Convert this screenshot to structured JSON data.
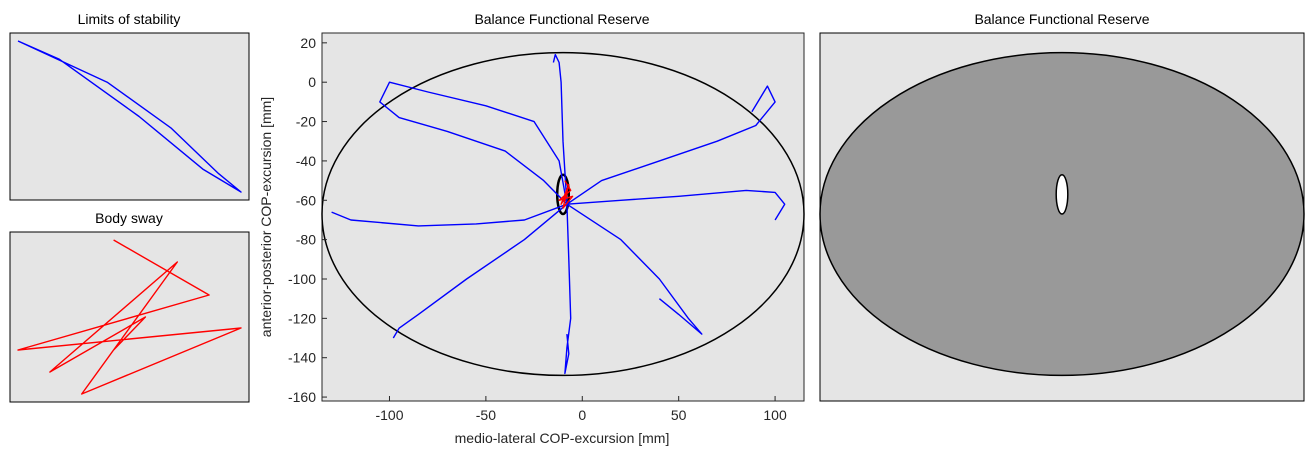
{
  "chart_data": [
    {
      "type": "line",
      "title": "Limits of stability",
      "xlabel": "",
      "ylabel": "",
      "axes_visible": false,
      "background": "#e5e5e5",
      "series": [
        {
          "color": "#0000ff",
          "x": [
            -8,
            20,
            40,
            55,
            62,
            50,
            30,
            5,
            -8
          ],
          "y": [
            -62,
            -80,
            -100,
            -120,
            -128,
            -118,
            -95,
            -70,
            -62
          ]
        }
      ]
    },
    {
      "type": "line",
      "title": "Body sway",
      "xlabel": "",
      "ylabel": "",
      "axes_visible": false,
      "background": "#e5e5e5",
      "series": [
        {
          "color": "#ff0000",
          "x": [
            -9,
            -6,
            -12,
            -5,
            -10,
            -7,
            -11,
            -8,
            -9
          ],
          "y": [
            -50,
            -55,
            -60,
            -58,
            -64,
            -52,
            -62,
            -57,
            -60
          ]
        }
      ]
    },
    {
      "type": "line",
      "title": "Balance Functional Reserve",
      "xlabel": "medio-lateral COP-excursion [mm]",
      "ylabel": "anterior-posterior COP-excursion [mm]",
      "xlim": [
        -135,
        115
      ],
      "ylim": [
        -162,
        25
      ],
      "xticks": [
        -100,
        -50,
        0,
        50,
        100
      ],
      "yticks": [
        20,
        0,
        -20,
        -40,
        -60,
        -80,
        -100,
        -120,
        -140,
        -160
      ],
      "background": "#e5e5e5",
      "colors": {
        "los": "#0000ff",
        "sway": "#ff0000",
        "ellipse": "#000000"
      },
      "ellipses": [
        {
          "cx": -10,
          "cy": -67,
          "rx": 125,
          "ry": 82,
          "color": "#000000"
        },
        {
          "cx": -10,
          "cy": -57,
          "rx": 3,
          "ry": 10,
          "color": "#000000"
        }
      ],
      "series": [
        {
          "name": "",
          "color": "#0000ff",
          "x": [
            -8,
            -12,
            -20,
            -40,
            -70,
            -95,
            -105,
            -100,
            -80,
            -50,
            -25,
            -12,
            -8
          ],
          "y": [
            -62,
            -58,
            -50,
            -35,
            -25,
            -18,
            -10,
            0,
            -5,
            -12,
            -20,
            -40,
            -62
          ]
        },
        {
          "name": "",
          "color": "#0000ff",
          "x": [
            -8,
            -10,
            -11,
            -12,
            -14,
            -15
          ],
          "y": [
            -62,
            -30,
            0,
            10,
            14,
            10
          ]
        },
        {
          "name": "",
          "color": "#0000ff",
          "x": [
            -8,
            10,
            40,
            70,
            90,
            100,
            96,
            88
          ],
          "y": [
            -62,
            -50,
            -40,
            -30,
            -22,
            -10,
            -2,
            -15
          ]
        },
        {
          "name": "",
          "color": "#0000ff",
          "x": [
            -8,
            20,
            50,
            85,
            100,
            105,
            100
          ],
          "y": [
            -62,
            -60,
            -58,
            -55,
            -56,
            -62,
            -70
          ]
        },
        {
          "name": "",
          "color": "#0000ff",
          "x": [
            -8,
            20,
            40,
            55,
            62,
            50,
            40
          ],
          "y": [
            -62,
            -80,
            -100,
            -120,
            -128,
            -118,
            -110
          ]
        },
        {
          "name": "",
          "color": "#0000ff",
          "x": [
            -8,
            -30,
            -55,
            -85,
            -120,
            -130
          ],
          "y": [
            -62,
            -70,
            -72,
            -73,
            -70,
            -66
          ]
        },
        {
          "name": "",
          "color": "#0000ff",
          "x": [
            -8,
            -30,
            -60,
            -85,
            -95,
            -98
          ],
          "y": [
            -62,
            -80,
            -100,
            -118,
            -125,
            -130
          ]
        },
        {
          "name": "",
          "color": "#0000ff",
          "x": [
            -8,
            -7,
            -6,
            -8,
            -9,
            -7,
            -8
          ],
          "y": [
            -62,
            -90,
            -120,
            -135,
            -148,
            -138,
            -128
          ]
        },
        {
          "name": "",
          "color": "#ff0000",
          "x": [
            -9,
            -6,
            -12,
            -5,
            -10,
            -7,
            -11,
            -8,
            -9
          ],
          "y": [
            -50,
            -55,
            -60,
            -58,
            -64,
            -52,
            -62,
            -57,
            -60
          ]
        }
      ]
    },
    {
      "type": "area",
      "title": "Balance Functional Reserve",
      "xlabel": "",
      "ylabel": "",
      "axes_visible": false,
      "background": "#e5e5e5",
      "ellipses": [
        {
          "cx": -10,
          "cy": -67,
          "rx": 125,
          "ry": 82,
          "fill": "#999999",
          "color": "#000000"
        },
        {
          "cx": -10,
          "cy": -57,
          "rx": 3,
          "ry": 10,
          "fill": "#ffffff",
          "color": "#000000"
        }
      ]
    }
  ]
}
